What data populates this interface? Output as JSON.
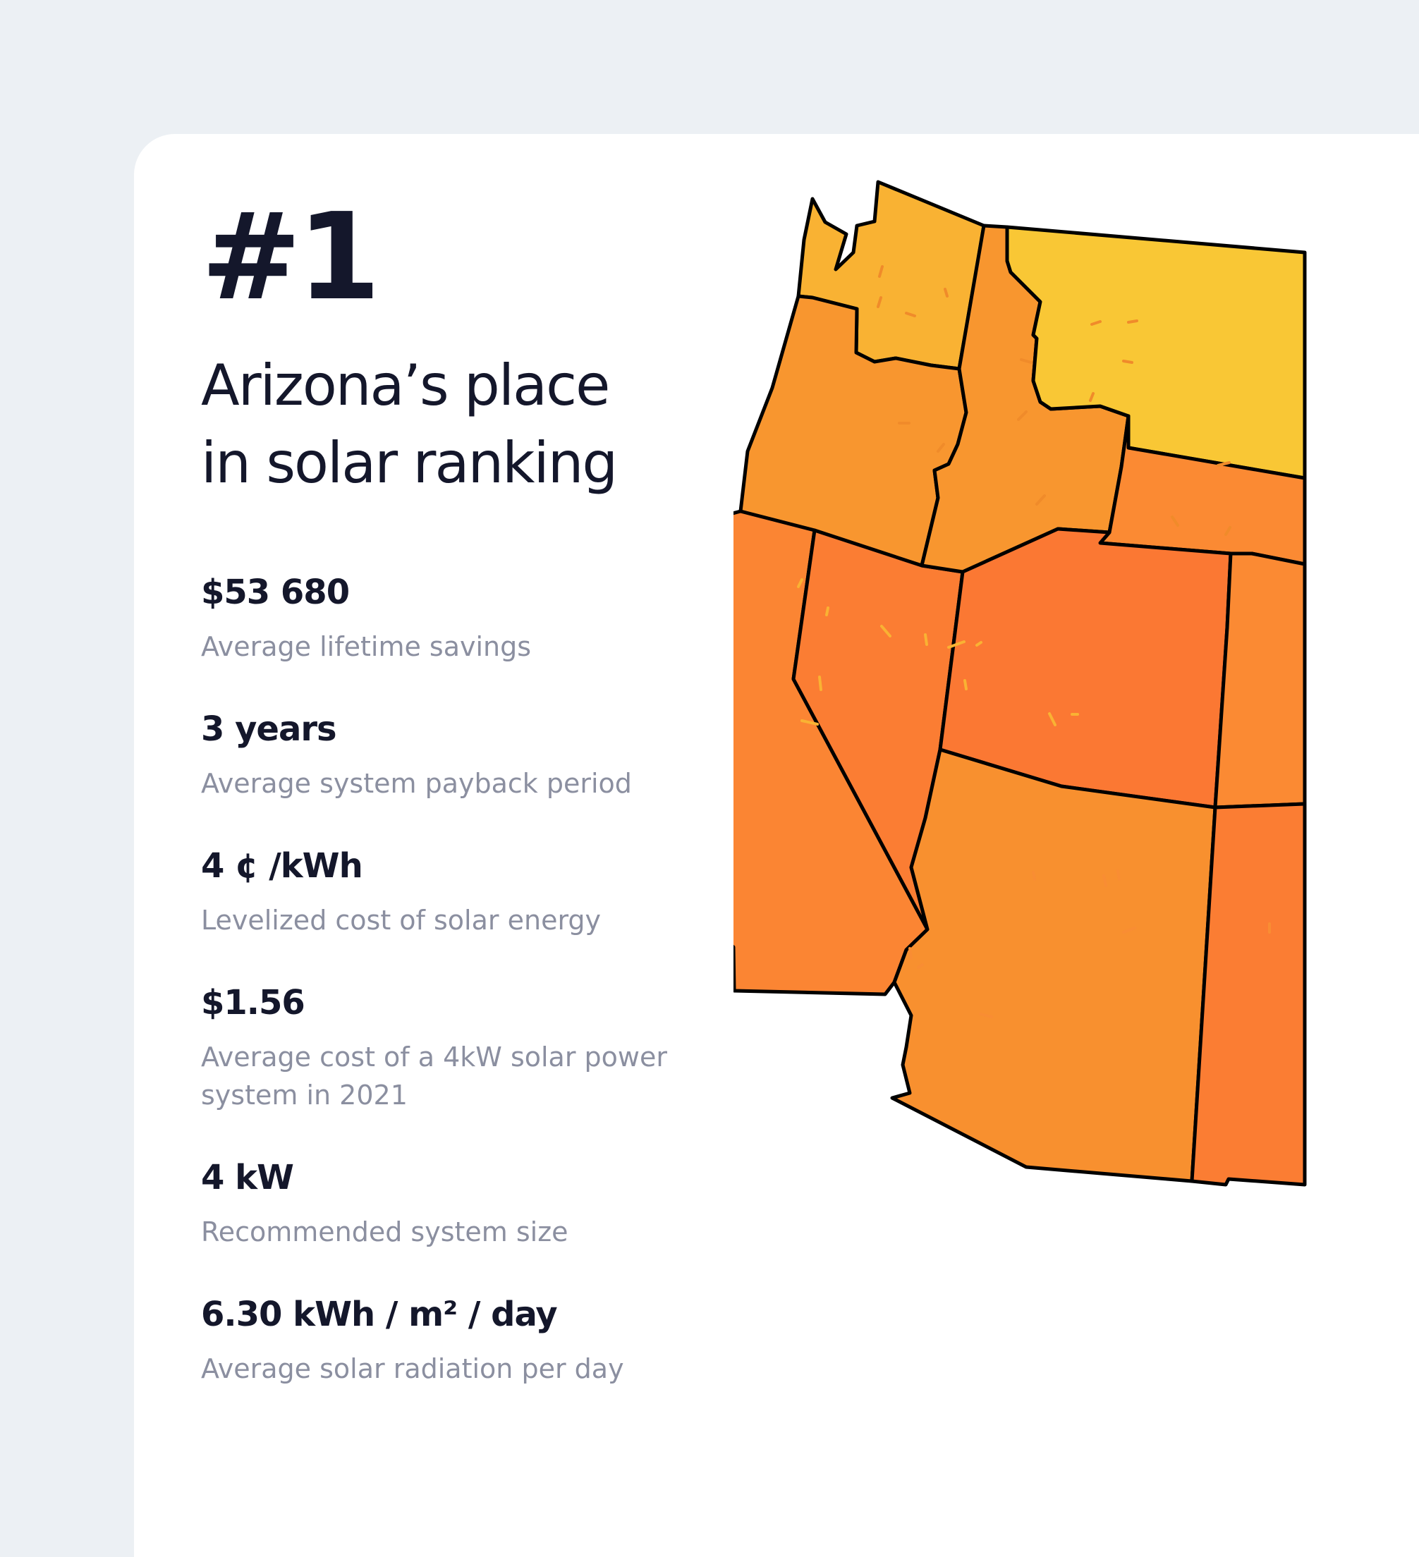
{
  "hero": {
    "rank": "#1",
    "title_line1": "Arizona’s place",
    "title_line2": "in solar ranking"
  },
  "stats": [
    {
      "value": "$53 680",
      "label": "Average lifetime savings"
    },
    {
      "value": "3 years",
      "label": "Average system payback period"
    },
    {
      "value": "4 ¢ /kWh",
      "label": "Levelized cost of solar energy"
    },
    {
      "value": "$1.56",
      "label": "Average cost of a 4kW solar power system in 2021"
    },
    {
      "value": "4 kW",
      "label": "Recommended system size"
    },
    {
      "value": "6.30 kWh / m² / day",
      "label": "Average solar radiation per day"
    }
  ],
  "map": {
    "states": [
      {
        "name": "Washington",
        "color": "#f9b233"
      },
      {
        "name": "Oregon",
        "color": "#f8962f"
      },
      {
        "name": "California",
        "color": "#fb8533"
      },
      {
        "name": "Nevada",
        "color": "#fb7d33"
      },
      {
        "name": "Idaho",
        "color": "#f8962f"
      },
      {
        "name": "Montana",
        "color": "#f9c735"
      },
      {
        "name": "Utah",
        "color": "#fb8a33"
      },
      {
        "name": "Arizona",
        "color": "#fb7833"
      },
      {
        "name": "Wyoming",
        "color": "#f8902f"
      },
      {
        "name": "Colorado",
        "color": "#fb8a33"
      },
      {
        "name": "New Mexico",
        "color": "#fb7d33"
      }
    ]
  }
}
